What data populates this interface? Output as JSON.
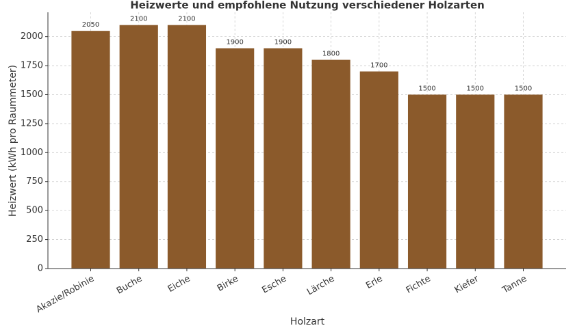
{
  "chart_data": {
    "type": "bar",
    "title": "Heizwerte und empfohlene Nutzung verschiedener Holzarten",
    "x_label": "Holzart",
    "y_label": "Heizwert (kWh pro Raummeter)",
    "categories": [
      "Akazie/Robinie",
      "Buche",
      "Eiche",
      "Birke",
      "Esche",
      "Lärche",
      "Erle",
      "Fichte",
      "Kiefer",
      "Tanne"
    ],
    "values": [
      2050,
      2100,
      2100,
      1900,
      1900,
      1800,
      1700,
      1500,
      1500,
      1500
    ],
    "color": "#8b5a2b",
    "ylim": [
      0,
      2210
    ],
    "yticks": [
      0,
      250,
      500,
      750,
      1000,
      1250,
      1500,
      1750,
      2000
    ],
    "grid": true
  }
}
